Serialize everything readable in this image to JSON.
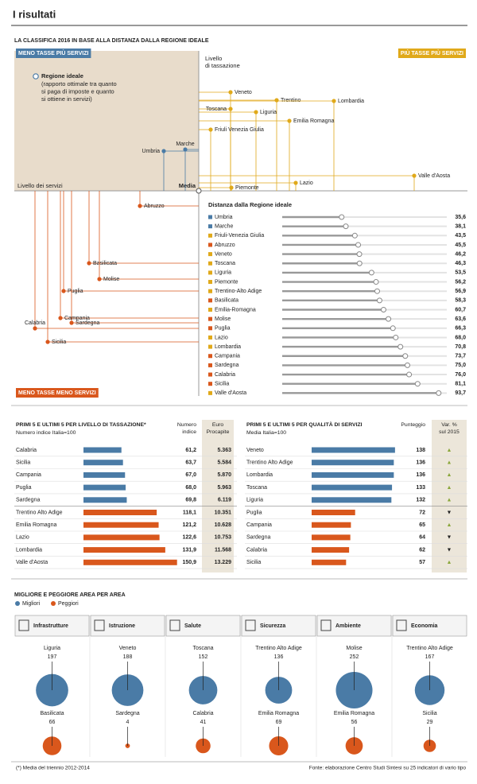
{
  "header": {
    "title": "I risultati",
    "subtitle": "LA CLASSIFICA 2016 IN BASE ALLA DISTANZA DALLA REGIONE IDEALE"
  },
  "map": {
    "quadrants": [
      "MENO TASSE PIÙ SERVIZI",
      "PIÙ TASSE PIÙ SERVIZI",
      "MENO TASSE MENO SERVIZI"
    ],
    "quadrant_colors": [
      "#4a7ba6",
      "#e0a91a",
      "#d9571c"
    ],
    "tax_axis": [
      "Livello",
      "di tassazione"
    ],
    "service_axis": "Livello dei servizi",
    "center": "Media",
    "legend_title": "Regione ideale",
    "legend_text": [
      "(rapporto ottimale tra quanto",
      "si paga di imposte e quanto",
      "si ottiene in servizi)"
    ],
    "nodes": [
      {
        "label": "Veneto",
        "color": "#e0a91a"
      },
      {
        "label": "Trentino",
        "color": "#e0a91a"
      },
      {
        "label": "Lombardia",
        "color": "#e0a91a"
      },
      {
        "label": "Toscana",
        "color": "#e0a91a"
      },
      {
        "label": "Liguria",
        "color": "#e0a91a"
      },
      {
        "label": "Emilia Romagna",
        "color": "#e0a91a"
      },
      {
        "label": "Friuli Venezia Giulia",
        "color": "#e0a91a"
      },
      {
        "label": "Marche",
        "color": "#4a7ba6"
      },
      {
        "label": "Umbria",
        "color": "#4a7ba6"
      },
      {
        "label": "Valle d'Aosta",
        "color": "#e0a91a"
      },
      {
        "label": "Lazio",
        "color": "#e0a91a"
      },
      {
        "label": "Piemonte",
        "color": "#e0a91a"
      },
      {
        "label": "Abruzzo",
        "color": "#d9571c"
      },
      {
        "label": "Basilicata",
        "color": "#d9571c"
      },
      {
        "label": "Molise",
        "color": "#d9571c"
      },
      {
        "label": "Puglia",
        "color": "#d9571c"
      },
      {
        "label": "Campania",
        "color": "#d9571c"
      },
      {
        "label": "Sardegna",
        "color": "#d9571c"
      },
      {
        "label": "Calabria",
        "color": "#d9571c"
      },
      {
        "label": "Sicilia",
        "color": "#d9571c"
      }
    ]
  },
  "chart_data": {
    "type": "bar",
    "title": "Distanza dalla Regione ideale",
    "categories": [
      "Umbria",
      "Marche",
      "Friuli-Venezia Giulia",
      "Abruzzo",
      "Veneto",
      "Toscana",
      "Liguria",
      "Piemonte",
      "Trentino-Alto Adige",
      "Basilicata",
      "Emilia-Romagna",
      "Molise",
      "Puglia",
      "Lazio",
      "Lombardia",
      "Campania",
      "Sardegna",
      "Calabria",
      "Sicilia",
      "Valle d'Aosta"
    ],
    "values": [
      35.6,
      38.1,
      43.5,
      45.5,
      46.2,
      46.3,
      53.5,
      56.2,
      56.9,
      58.3,
      60.7,
      63.6,
      66.3,
      68.0,
      70.8,
      73.7,
      75.0,
      76.0,
      81.1,
      93.7
    ],
    "value_labels": [
      "35,6",
      "38,1",
      "43,5",
      "45,5",
      "46,2",
      "46,3",
      "53,5",
      "56,2",
      "56,9",
      "58,3",
      "60,7",
      "63,6",
      "66,3",
      "68,0",
      "70,8",
      "73,7",
      "75,0",
      "76,0",
      "81,1",
      "93,7"
    ],
    "colors": [
      "#4a7ba6",
      "#4a7ba6",
      "#e0a91a",
      "#d9571c",
      "#e0a91a",
      "#e0a91a",
      "#e0a91a",
      "#e0a91a",
      "#e0a91a",
      "#d9571c",
      "#e0a91a",
      "#d9571c",
      "#d9571c",
      "#e0a91a",
      "#e0a91a",
      "#d9571c",
      "#d9571c",
      "#d9571c",
      "#d9571c",
      "#e0a91a"
    ]
  },
  "tables": [
    {
      "title": "PRIMI 5 E ULTIMI 5 PER LIVELLO DI TASSAZIONE*",
      "subtitle": "Numero indice Italia=100",
      "col1": [
        "Numero",
        "indice"
      ],
      "col2": [
        "Euro",
        "Procapite"
      ],
      "colors": [
        "#4a7ba6",
        "#d9571c"
      ],
      "rows": [
        {
          "name": "Calabria",
          "value": 61.2,
          "value_label": "61,2",
          "extra": "5.363"
        },
        {
          "name": "Sicilia",
          "value": 63.7,
          "value_label": "63,7",
          "extra": "5.584"
        },
        {
          "name": "Campania",
          "value": 67.0,
          "value_label": "67,0",
          "extra": "5.870"
        },
        {
          "name": "Puglia",
          "value": 68.0,
          "value_label": "68,0",
          "extra": "5.963"
        },
        {
          "name": "Sardegna",
          "value": 69.8,
          "value_label": "69,8",
          "extra": "6.119"
        },
        {
          "name": "Trentino Alto Adige",
          "value": 118.1,
          "value_label": "118,1",
          "extra": "10.351"
        },
        {
          "name": "Emilia Romagna",
          "value": 121.2,
          "value_label": "121,2",
          "extra": "10.628"
        },
        {
          "name": "Lazio",
          "value": 122.6,
          "value_label": "122,6",
          "extra": "10.753"
        },
        {
          "name": "Lombardia",
          "value": 131.9,
          "value_label": "131,9",
          "extra": "11.568"
        },
        {
          "name": "Valle d'Aosta",
          "value": 150.9,
          "value_label": "150,9",
          "extra": "13.229"
        }
      ]
    },
    {
      "title": "PRIMI 5 E ULTIMI 5 PER QUALITÀ DI SERVIZI",
      "subtitle": "Media Italia=100",
      "col1": [
        "Punteggio"
      ],
      "col2": [
        "Var. %",
        "sul 2015"
      ],
      "colors": [
        "#4a7ba6",
        "#d9571c"
      ],
      "rows": [
        {
          "name": "Veneto",
          "value": 138,
          "value_label": "138",
          "extra": "▲"
        },
        {
          "name": "Trentino Alto Adige",
          "value": 136,
          "value_label": "136",
          "extra": "▲"
        },
        {
          "name": "Lombardia",
          "value": 136,
          "value_label": "136",
          "extra": "▲"
        },
        {
          "name": "Toscana",
          "value": 133,
          "value_label": "133",
          "extra": "▲"
        },
        {
          "name": "Liguria",
          "value": 132,
          "value_label": "132",
          "extra": "▲"
        },
        {
          "name": "Puglia",
          "value": 72,
          "value_label": "72",
          "extra": "▼"
        },
        {
          "name": "Campania",
          "value": 65,
          "value_label": "65",
          "extra": "▲"
        },
        {
          "name": "Sardegna",
          "value": 64,
          "value_label": "64",
          "extra": "▼"
        },
        {
          "name": "Calabria",
          "value": 62,
          "value_label": "62",
          "extra": "▼"
        },
        {
          "name": "Sicilia",
          "value": 57,
          "value_label": "57",
          "extra": "▲"
        }
      ]
    }
  ],
  "areas": {
    "title": "MIGLIORE E PEGGIORE AREA PER AREA",
    "legend": [
      {
        "name": "Migliori",
        "color": "#4a7ba6"
      },
      {
        "name": "Peggiori",
        "color": "#d9571c"
      }
    ],
    "panels": [
      {
        "name": "Infrastrutture",
        "best": {
          "region": "Liguria",
          "value": 197
        },
        "worst": {
          "region": "Basilicata",
          "value": 66
        }
      },
      {
        "name": "Istruzione",
        "best": {
          "region": "Veneto",
          "value": 188
        },
        "worst": {
          "region": "Sardegna",
          "value": 4
        }
      },
      {
        "name": "Salute",
        "best": {
          "region": "Toscana",
          "value": 152
        },
        "worst": {
          "region": "Calabria",
          "value": 41
        }
      },
      {
        "name": "Sicurezza",
        "best": {
          "region": "Trentino Alto Adige",
          "value": 136
        },
        "worst": {
          "region": "Emilia Romagna",
          "value": 69
        }
      },
      {
        "name": "Ambiente",
        "best": {
          "region": "Molise",
          "value": 252
        },
        "worst": {
          "region": "Emilia Romagna",
          "value": 56
        }
      },
      {
        "name": "Economia",
        "best": {
          "region": "Trentino Alto Adige",
          "value": 167
        },
        "worst": {
          "region": "Sicilia",
          "value": 29
        }
      }
    ]
  },
  "footer": {
    "note": "(*) Media del triennio 2012-2014",
    "source": "Fonte: elaborazione Centro Studi Sintesi su 25 indicatori di vario tipo"
  }
}
